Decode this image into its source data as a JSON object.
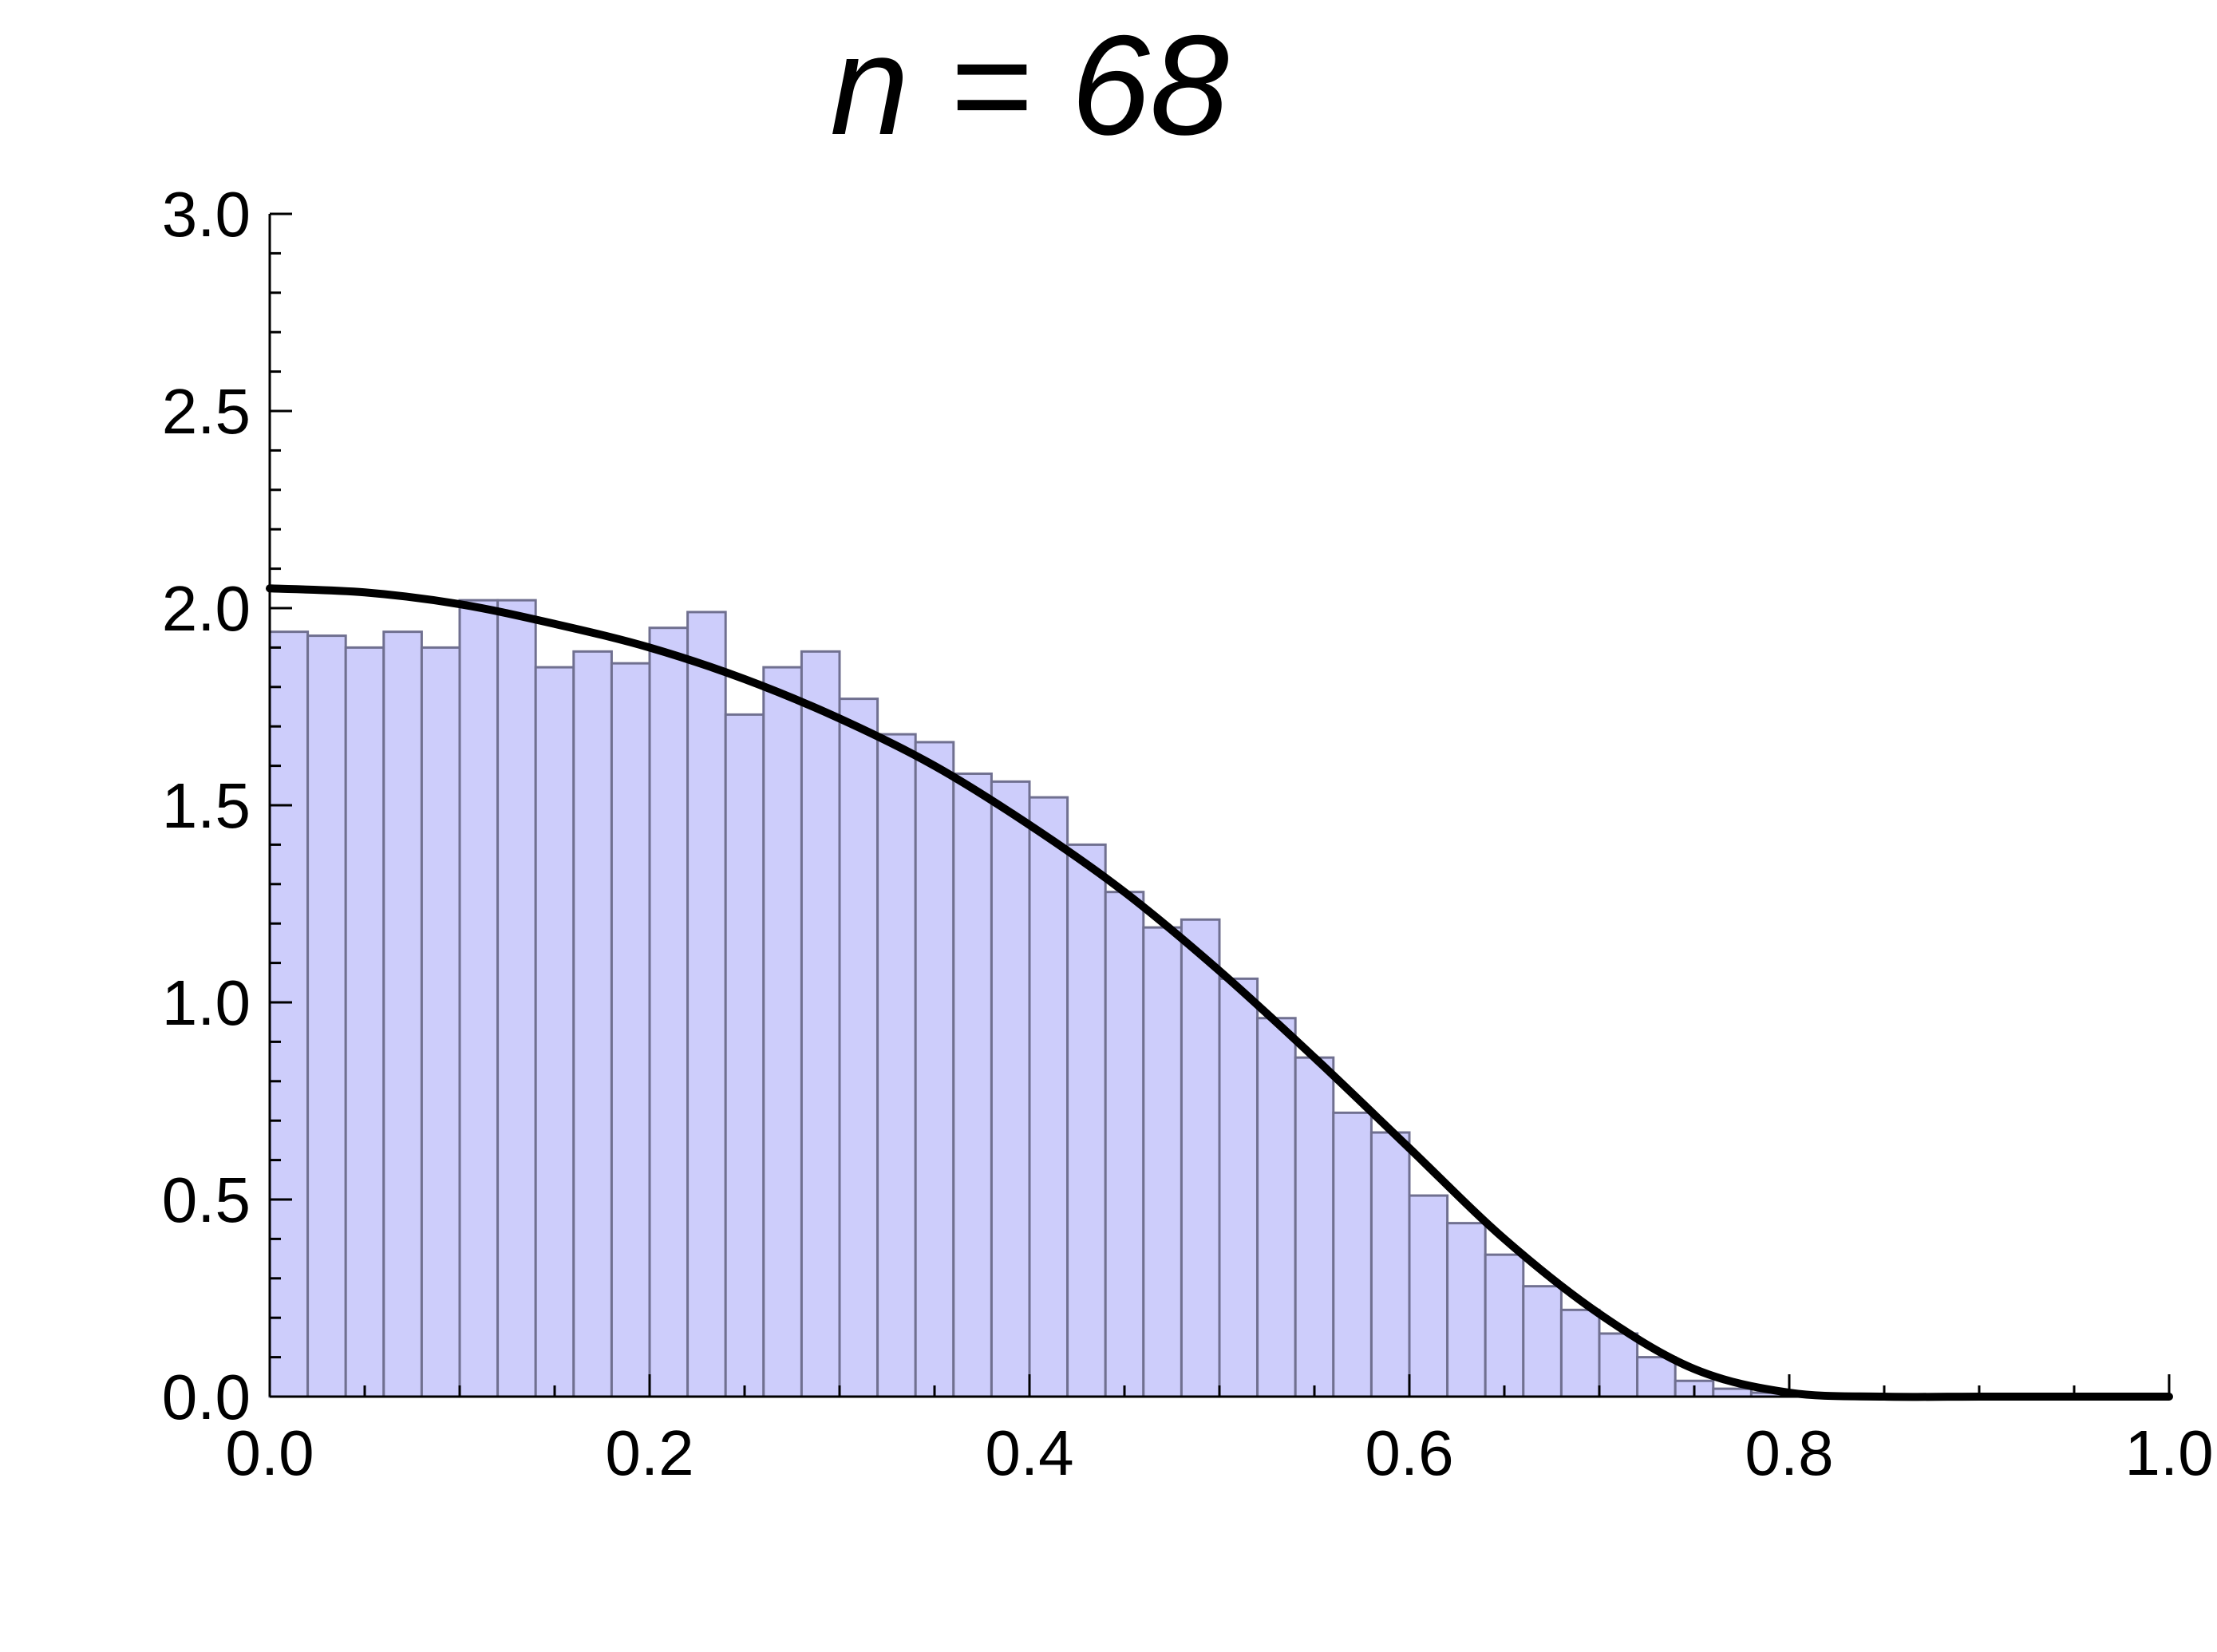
{
  "chart_data": {
    "type": "bar",
    "title": "n = 68",
    "xlabel": "",
    "ylabel": "",
    "xlim": [
      0.0,
      1.0
    ],
    "ylim": [
      0.0,
      3.0
    ],
    "x_ticks": [
      "0.0",
      "0.2",
      "0.4",
      "0.6",
      "0.8",
      "1.0"
    ],
    "y_ticks": [
      "0.0",
      "0.5",
      "1.0",
      "1.5",
      "2.0",
      "2.5",
      "3.0"
    ],
    "grid": false,
    "legend": "none",
    "bin_width": 0.02,
    "bins_start": 0.0,
    "histogram_values": [
      1.94,
      1.93,
      1.9,
      1.94,
      1.9,
      2.02,
      2.02,
      1.85,
      1.89,
      1.86,
      1.95,
      1.99,
      1.73,
      1.85,
      1.89,
      1.77,
      1.68,
      1.66,
      1.58,
      1.56,
      1.52,
      1.4,
      1.28,
      1.19,
      1.21,
      1.06,
      0.96,
      0.86,
      0.72,
      0.67,
      0.51,
      0.44,
      0.36,
      0.28,
      0.22,
      0.16,
      0.1,
      0.04,
      0.02,
      0.01
    ],
    "curve": {
      "x": [
        0.0,
        0.05,
        0.1,
        0.15,
        0.2,
        0.25,
        0.3,
        0.35,
        0.4,
        0.45,
        0.5,
        0.55,
        0.6,
        0.65,
        0.7,
        0.75,
        0.8,
        0.85,
        0.9,
        0.95,
        1.0
      ],
      "y": [
        2.05,
        2.04,
        2.01,
        1.96,
        1.9,
        1.82,
        1.72,
        1.6,
        1.45,
        1.28,
        1.08,
        0.86,
        0.63,
        0.4,
        0.21,
        0.07,
        0.01,
        0.0,
        0.0,
        0.0,
        0.0
      ]
    },
    "colors": {
      "bar_fill": "#cdcdfb",
      "bar_stroke": "#707090",
      "curve": "#000000",
      "axis": "#000000"
    }
  }
}
